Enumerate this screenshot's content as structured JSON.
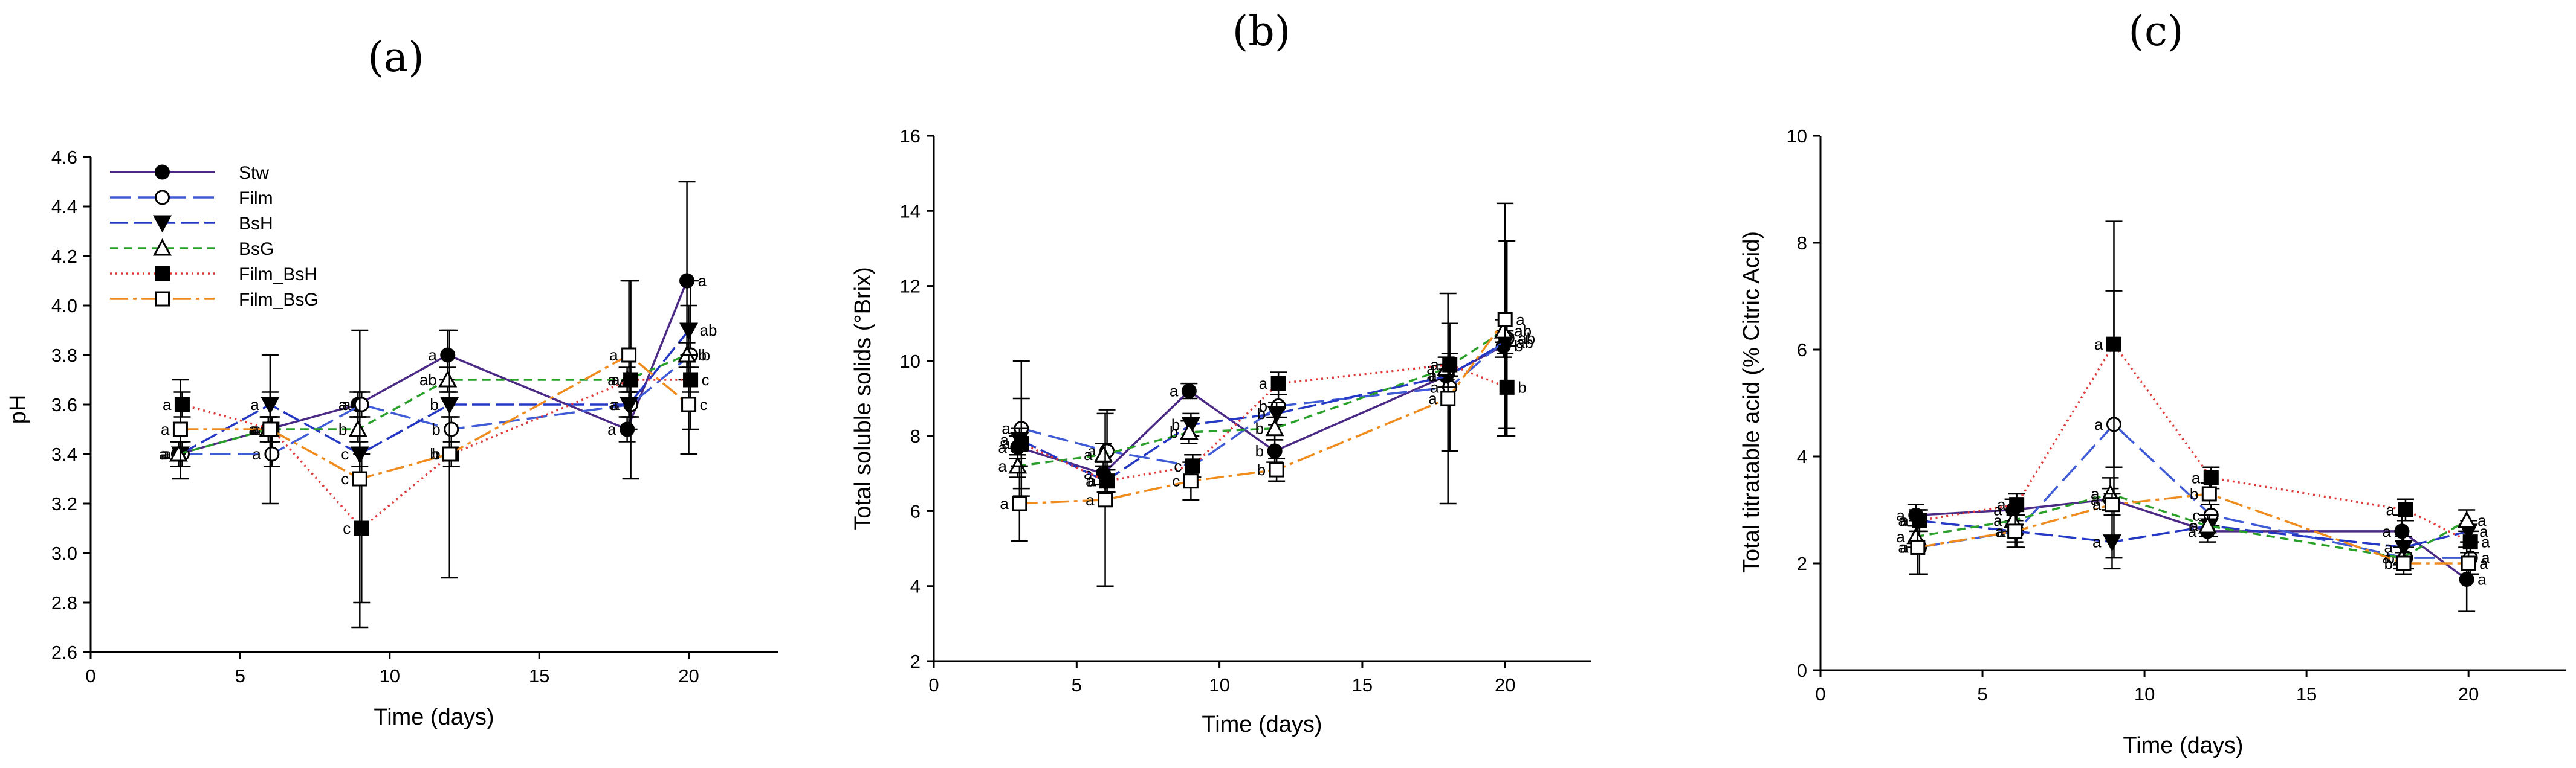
{
  "styles": {
    "Stw": {
      "color": "#4b2a86",
      "dash": "",
      "marker": "circle",
      "fill": "filled"
    },
    "Film": {
      "color": "#3f5bd6",
      "dash": "34,12",
      "marker": "circle",
      "fill": "open"
    },
    "BsH": {
      "color": "#2438c4",
      "dash": "30,9,30,9",
      "marker": "tri-down",
      "fill": "filled"
    },
    "BsG": {
      "color": "#2aa02a",
      "dash": "14,9",
      "marker": "tri-up",
      "fill": "open"
    },
    "Film_BsH": {
      "color": "#e03a3a",
      "dash": "3,6",
      "marker": "square",
      "fill": "filled"
    },
    "Film_BsG": {
      "color": "#f08c1e",
      "dash": "30,8,6,8",
      "marker": "square",
      "fill": "open"
    }
  },
  "chart_data": [
    {
      "type": "line",
      "panel": "(a)",
      "xlabel": "Time (days)",
      "ylabel": "pH",
      "xlim": [
        0,
        23
      ],
      "ylim": [
        2.6,
        4.6
      ],
      "xticks": [
        "0",
        "5",
        "10",
        "15",
        "20"
      ],
      "yticks": [
        "2.6",
        "2.8",
        "3.0",
        "3.2",
        "3.4",
        "3.6",
        "3.8",
        "4.0",
        "4.2",
        "4.4",
        "4.6"
      ],
      "x": [
        3,
        6,
        9,
        12,
        18,
        20
      ],
      "legend": [
        "Stw",
        "Film",
        "BsH",
        "BsG",
        "Film_BsH",
        "Film_BsG"
      ],
      "legend_position": "top-left",
      "series": [
        {
          "name": "Stw",
          "values": [
            3.4,
            3.5,
            3.6,
            3.8,
            3.5,
            4.1
          ],
          "err": [
            0.05,
            0.05,
            0.05,
            0.1,
            0.05,
            0.4
          ],
          "labels": [
            "a",
            "a",
            "a",
            "a",
            "a",
            "a"
          ]
        },
        {
          "name": "Film",
          "values": [
            3.4,
            3.4,
            3.6,
            3.5,
            3.6,
            3.8
          ],
          "err": [
            0.05,
            0.05,
            0.05,
            0.05,
            0.05,
            0.3
          ],
          "labels": [
            "a",
            "a",
            "a",
            "b",
            "a",
            "b"
          ]
        },
        {
          "name": "BsH",
          "values": [
            3.4,
            3.6,
            3.4,
            3.6,
            3.6,
            3.9
          ],
          "err": [
            0.05,
            0.05,
            0.05,
            0.05,
            0.05,
            0.1
          ],
          "labels": [
            "a",
            "a",
            "c",
            "b",
            "a",
            "ab"
          ]
        },
        {
          "name": "BsG",
          "values": [
            3.4,
            3.5,
            3.5,
            3.7,
            3.7,
            3.8
          ],
          "err": [
            0.05,
            0.05,
            0.05,
            0.05,
            0.05,
            0.05
          ],
          "labels": [
            "a",
            "a",
            "b",
            "ab",
            "a",
            "b"
          ]
        },
        {
          "name": "Film_BsH",
          "values": [
            3.6,
            3.5,
            3.1,
            3.4,
            3.7,
            3.7
          ],
          "err": [
            0.05,
            0.05,
            0.3,
            0.05,
            0.4,
            0.05
          ],
          "labels": [
            "a",
            "a",
            "c",
            "b",
            "a",
            "c"
          ]
        },
        {
          "name": "Film_BsG",
          "values": [
            3.5,
            3.5,
            3.3,
            3.4,
            3.8,
            3.6
          ],
          "err": [
            0.2,
            0.3,
            0.6,
            0.5,
            0.3,
            0.2
          ],
          "labels": [
            "a",
            "a",
            "c",
            "b",
            "a",
            "c"
          ]
        }
      ]
    },
    {
      "type": "line",
      "panel": "(b)",
      "xlabel": "Time (days)",
      "ylabel": "Total soluble solids (°Brix)",
      "xlim": [
        0,
        23
      ],
      "ylim": [
        2,
        16
      ],
      "xticks": [
        "0",
        "5",
        "10",
        "15",
        "20"
      ],
      "yticks": [
        "2",
        "4",
        "6",
        "8",
        "10",
        "12",
        "14",
        "16"
      ],
      "x": [
        3,
        6,
        9,
        12,
        18,
        20
      ],
      "series": [
        {
          "name": "Stw",
          "values": [
            7.7,
            7.0,
            9.2,
            7.6,
            9.6,
            10.4
          ],
          "err": [
            0.3,
            0.3,
            0.2,
            0.3,
            0.3,
            0.3
          ],
          "labels": [
            "a",
            "a",
            "a",
            "b",
            "a",
            "b"
          ]
        },
        {
          "name": "Film",
          "values": [
            8.2,
            7.6,
            7.2,
            8.8,
            9.3,
            10.6
          ],
          "err": [
            1.8,
            1.1,
            0.3,
            0.3,
            1.7,
            2.6
          ],
          "labels": [
            "a",
            "a",
            "c",
            "b",
            "a",
            "ab"
          ]
        },
        {
          "name": "BsH",
          "values": [
            7.9,
            6.8,
            8.3,
            8.6,
            9.6,
            10.5
          ],
          "err": [
            0.3,
            0.3,
            0.3,
            0.3,
            0.3,
            0.3
          ],
          "labels": [
            "a",
            "a",
            "b",
            "b",
            "a",
            "ab"
          ]
        },
        {
          "name": "BsG",
          "values": [
            7.2,
            7.5,
            8.1,
            8.2,
            9.8,
            10.8
          ],
          "err": [
            0.3,
            0.3,
            0.3,
            0.3,
            0.3,
            0.3
          ],
          "labels": [
            "a",
            "a",
            "b",
            "b",
            "a",
            "ab"
          ]
        },
        {
          "name": "Film_BsH",
          "values": [
            7.8,
            6.8,
            7.2,
            9.4,
            9.9,
            9.3
          ],
          "err": [
            1.2,
            0.3,
            0.3,
            0.3,
            0.3,
            1.1
          ],
          "labels": [
            "a",
            "a",
            "c",
            "a",
            "a",
            "b"
          ]
        },
        {
          "name": "Film_BsG",
          "values": [
            6.2,
            6.3,
            6.8,
            7.1,
            9.0,
            11.1
          ],
          "err": [
            1.0,
            2.3,
            0.5,
            0.3,
            2.8,
            3.1
          ],
          "labels": [
            "a",
            "a",
            "c",
            "b",
            "a",
            "a"
          ]
        }
      ]
    },
    {
      "type": "line",
      "panel": "(c)",
      "xlabel": "Time (days)",
      "ylabel": "Total titratable acid (% Citric Acid)",
      "xlim": [
        0,
        23
      ],
      "ylim": [
        0,
        10
      ],
      "xticks": [
        "0",
        "5",
        "10",
        "15",
        "20"
      ],
      "yticks": [
        "0",
        "2",
        "4",
        "6",
        "8",
        "10"
      ],
      "x": [
        3,
        6,
        9,
        12,
        18,
        20
      ],
      "series": [
        {
          "name": "Stw",
          "values": [
            2.9,
            3.0,
            3.2,
            2.6,
            2.6,
            1.7
          ],
          "err": [
            0.2,
            0.2,
            0.2,
            0.2,
            0.3,
            0.6
          ],
          "labels": [
            "a",
            "a",
            "a",
            "a",
            "a",
            "a"
          ]
        },
        {
          "name": "Film",
          "values": [
            2.3,
            2.6,
            4.6,
            2.9,
            2.1,
            2.1
          ],
          "err": [
            0.5,
            0.3,
            2.5,
            0.2,
            0.2,
            0.3
          ],
          "labels": [
            "a",
            "a",
            "a",
            "c",
            "b",
            "a"
          ]
        },
        {
          "name": "BsH",
          "values": [
            2.8,
            2.6,
            2.4,
            2.7,
            2.3,
            2.6
          ],
          "err": [
            0.2,
            0.2,
            0.5,
            0.2,
            0.2,
            0.2
          ],
          "labels": [
            "a",
            "a",
            "a",
            "a",
            "a",
            "a"
          ]
        },
        {
          "name": "BsG",
          "values": [
            2.5,
            2.8,
            3.3,
            2.7,
            2.1,
            2.8
          ],
          "err": [
            0.2,
            0.2,
            0.3,
            0.2,
            0.2,
            0.2
          ],
          "labels": [
            "a",
            "a",
            "a",
            "c",
            "a",
            "a"
          ]
        },
        {
          "name": "Film_BsH",
          "values": [
            2.8,
            3.1,
            6.1,
            3.6,
            3.0,
            2.4
          ],
          "err": [
            0.2,
            0.2,
            2.3,
            0.2,
            0.2,
            0.2
          ],
          "labels": [
            "a",
            "a",
            "a",
            "a",
            "a",
            "a"
          ]
        },
        {
          "name": "Film_BsG",
          "values": [
            2.3,
            2.6,
            3.1,
            3.3,
            2.0,
            2.0
          ],
          "err": [
            0.5,
            0.3,
            0.2,
            0.2,
            0.2,
            0.2
          ],
          "labels": [
            "a",
            "a",
            "a",
            "b",
            "b",
            "a"
          ]
        }
      ]
    }
  ]
}
